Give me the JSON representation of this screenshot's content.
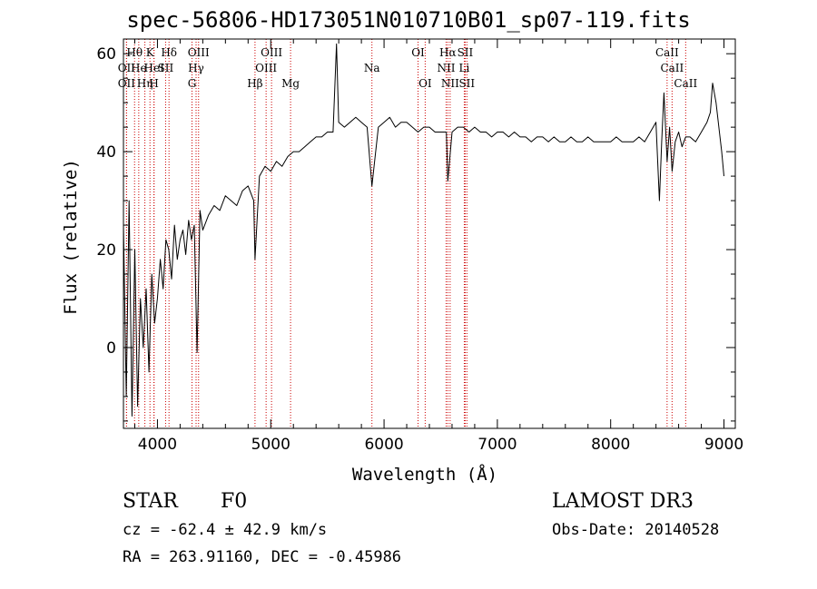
{
  "header": {
    "title": "spec-56806-HD173051N010710B01_sp07-119.fits"
  },
  "info": {
    "object_class": "STAR",
    "subclass": "F0",
    "survey": "LAMOST DR3",
    "redshift_line": "cz = -62.4 ± 42.9 km/s",
    "obs_date_line": "Obs-Date: 20140528",
    "coords_line": "RA = 263.91160, DEC =  -0.45986"
  },
  "chart_data": {
    "type": "line",
    "title": "spec-56806-HD173051N010710B01_sp07-119.fits",
    "xlabel": "Wavelength (Å)",
    "ylabel": "Flux (relative)",
    "xlim": [
      3700,
      9100
    ],
    "ylim": [
      -16.5,
      63
    ],
    "xticks": [
      4000,
      5000,
      6000,
      7000,
      8000,
      9000
    ],
    "yticks": [
      0,
      20,
      40,
      60
    ],
    "grid": false,
    "line_color": "#000000",
    "marker_color": "#cc0000",
    "series": [
      {
        "name": "flux",
        "x": [
          3700,
          3725,
          3750,
          3775,
          3800,
          3825,
          3850,
          3875,
          3900,
          3925,
          3950,
          3975,
          4000,
          4025,
          4050,
          4075,
          4100,
          4125,
          4150,
          4175,
          4200,
          4225,
          4250,
          4275,
          4300,
          4325,
          4350,
          4375,
          4400,
          4450,
          4500,
          4550,
          4600,
          4650,
          4700,
          4750,
          4800,
          4850,
          4861,
          4900,
          4950,
          5000,
          5050,
          5100,
          5150,
          5200,
          5250,
          5300,
          5350,
          5400,
          5450,
          5500,
          5550,
          5580,
          5600,
          5650,
          5700,
          5750,
          5800,
          5850,
          5893,
          5950,
          6000,
          6050,
          6100,
          6150,
          6200,
          6250,
          6300,
          6350,
          6400,
          6450,
          6500,
          6550,
          6563,
          6600,
          6650,
          6700,
          6750,
          6800,
          6850,
          6900,
          6950,
          7000,
          7050,
          7100,
          7150,
          7200,
          7250,
          7300,
          7350,
          7400,
          7450,
          7500,
          7550,
          7600,
          7650,
          7700,
          7750,
          7800,
          7850,
          7900,
          7950,
          8000,
          8050,
          8100,
          8150,
          8200,
          8250,
          8300,
          8350,
          8400,
          8430,
          8450,
          8470,
          8498,
          8520,
          8542,
          8570,
          8600,
          8630,
          8662,
          8700,
          8750,
          8800,
          8850,
          8880,
          8900,
          8930,
          8960,
          8980,
          9000
        ],
        "y": [
          25,
          -10,
          30,
          -14,
          20,
          -12,
          10,
          0,
          12,
          -5,
          15,
          5,
          10,
          18,
          12,
          22,
          20,
          14,
          25,
          18,
          22,
          24,
          19,
          26,
          22,
          25,
          -1,
          28,
          24,
          27,
          29,
          28,
          31,
          30,
          29,
          32,
          33,
          30,
          18,
          35,
          37,
          36,
          38,
          37,
          39,
          40,
          40,
          41,
          42,
          43,
          43,
          44,
          44,
          62,
          46,
          45,
          46,
          47,
          46,
          45,
          33,
          45,
          46,
          47,
          45,
          46,
          46,
          45,
          44,
          45,
          45,
          44,
          44,
          44,
          34,
          44,
          45,
          45,
          44,
          45,
          44,
          44,
          43,
          44,
          44,
          43,
          44,
          43,
          43,
          42,
          43,
          43,
          42,
          43,
          42,
          42,
          43,
          42,
          42,
          43,
          42,
          42,
          42,
          42,
          43,
          42,
          42,
          42,
          43,
          42,
          44,
          46,
          30,
          42,
          52,
          38,
          45,
          36,
          42,
          44,
          41,
          43,
          43,
          42,
          44,
          46,
          48,
          54,
          50,
          44,
          40,
          35
        ]
      }
    ],
    "lines": [
      {
        "name": "OII",
        "wl": 3727,
        "row": 2
      },
      {
        "name": "OII",
        "wl": 3727,
        "row": 3
      },
      {
        "name": "Hθ",
        "wl": 3798,
        "row": 1
      },
      {
        "name": "He",
        "wl": 3835,
        "row": 2
      },
      {
        "name": "Hη",
        "wl": 3889,
        "row": 3
      },
      {
        "name": "K",
        "wl": 3934,
        "row": 1
      },
      {
        "name": "H",
        "wl": 3969,
        "row": 3
      },
      {
        "name": "HeI",
        "wl": 3970,
        "row": 2
      },
      {
        "name": "Hδ",
        "wl": 4102,
        "row": 1
      },
      {
        "name": "SII",
        "wl": 4072,
        "row": 2
      },
      {
        "name": "OIII",
        "wl": 4363,
        "row": 1
      },
      {
        "name": "Hγ",
        "wl": 4341,
        "row": 2
      },
      {
        "name": "G",
        "wl": 4305,
        "row": 3
      },
      {
        "name": "Hβ",
        "wl": 4861,
        "row": 3
      },
      {
        "name": "OIII",
        "wl": 5007,
        "row": 1
      },
      {
        "name": "OIII",
        "wl": 4959,
        "row": 2
      },
      {
        "name": "Mg",
        "wl": 5175,
        "row": 3
      },
      {
        "name": "Na",
        "wl": 5893,
        "row": 2
      },
      {
        "name": "OI",
        "wl": 6300,
        "row": 1
      },
      {
        "name": "OI",
        "wl": 6363,
        "row": 3
      },
      {
        "name": "Hα",
        "wl": 6563,
        "row": 1
      },
      {
        "name": "NII",
        "wl": 6548,
        "row": 2
      },
      {
        "name": "NII",
        "wl": 6583,
        "row": 3
      },
      {
        "name": "SII",
        "wl": 6716,
        "row": 1
      },
      {
        "name": "Li",
        "wl": 6708,
        "row": 2
      },
      {
        "name": "SII",
        "wl": 6731,
        "row": 3
      },
      {
        "name": "CaII",
        "wl": 8498,
        "row": 1
      },
      {
        "name": "CaII",
        "wl": 8542,
        "row": 2
      },
      {
        "name": "CaII",
        "wl": 8662,
        "row": 3
      }
    ]
  }
}
